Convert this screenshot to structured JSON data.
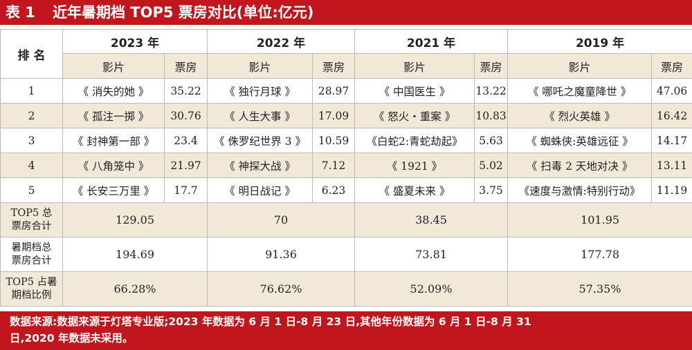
{
  "title": {
    "num": "表 1",
    "text": "近年暑期档 TOP5 票房对比(单位:亿元)"
  },
  "table": {
    "rank_header": "排 名",
    "years": [
      "2023 年",
      "2022 年",
      "2021 年",
      "2019 年"
    ],
    "film_label": "影片",
    "box_label": "票房",
    "rows": [
      {
        "rank": "1",
        "c": [
          [
            "《 消失的她 》",
            "35.22"
          ],
          [
            "《 独行月球 》",
            "28.97"
          ],
          [
            "《 中国医生 》",
            "13.22"
          ],
          [
            "《 哪吒之魔童降世 》",
            "47.06"
          ]
        ]
      },
      {
        "rank": "2",
        "c": [
          [
            "《 孤注一掷 》",
            "30.76"
          ],
          [
            "《 人生大事 》",
            "17.09"
          ],
          [
            "《 怒火・重案 》",
            "10.83"
          ],
          [
            "《 烈火英雄 》",
            "16.42"
          ]
        ]
      },
      {
        "rank": "3",
        "c": [
          [
            "《 封神第一部 》",
            "23.4"
          ],
          [
            "《 侏罗纪世界 3 》",
            "10.59"
          ],
          [
            "《白蛇2:青蛇劫起》",
            "5.63"
          ],
          [
            "《 蜘蛛侠:英雄远征 》",
            "14.17"
          ]
        ]
      },
      {
        "rank": "4",
        "c": [
          [
            "《 八角笼中 》",
            "21.97"
          ],
          [
            "《 神探大战 》",
            "7.12"
          ],
          [
            "《 1921 》",
            "5.02"
          ],
          [
            "《 扫毒 2 天地对决 》",
            "13.11"
          ]
        ]
      },
      {
        "rank": "5",
        "c": [
          [
            "《 长安三万里 》",
            "17.7"
          ],
          [
            "《 明日战记 》",
            "6.23"
          ],
          [
            "《 盛夏未来 》",
            "3.75"
          ],
          [
            "《速度与激情:特别行动》",
            "11.19"
          ]
        ]
      }
    ],
    "summary": [
      {
        "label1": "TOP5 总",
        "label2": "票房合计",
        "values": [
          "129.05",
          "70",
          "38.45",
          "101.95"
        ]
      },
      {
        "label1": "暑期档总",
        "label2": "票房合计",
        "values": [
          "194.69",
          "91.36",
          "73.81",
          "177.78"
        ]
      },
      {
        "label1": "TOP5 占暑",
        "label2": "期档比例",
        "values": [
          "66.28%",
          "76.62%",
          "52.09%",
          "57.35%"
        ]
      }
    ]
  },
  "footer": {
    "line1": "数据来源:数据来源于灯塔专业版;2023 年数据为 6 月 1 日-8 月 23 日,其他年份数据为 6 月 1 日-8 月 31",
    "line2": "日,2020 年数据未采用。"
  }
}
